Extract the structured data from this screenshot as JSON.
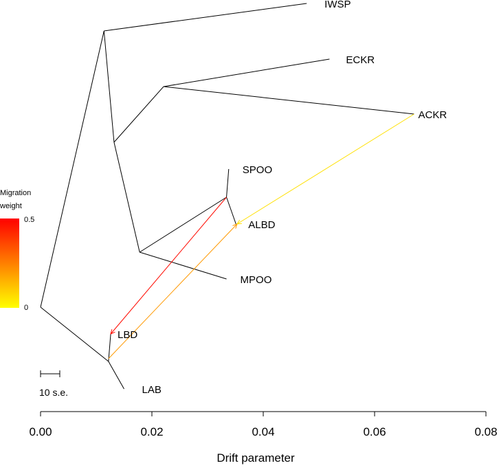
{
  "chart_data": {
    "type": "tree",
    "xlabel": "Drift parameter",
    "xlim": [
      0,
      0.08
    ],
    "x_ticks": [
      0,
      0.02,
      0.04,
      0.06,
      0.08
    ],
    "x_tick_labels": [
      "0.00",
      "0.02",
      "0.04",
      "0.06",
      "0.08"
    ],
    "nodes": [
      {
        "id": "root",
        "drift": 0.0
      },
      {
        "id": "n1",
        "drift": 0.0114
      },
      {
        "id": "n2",
        "drift": 0.0132
      },
      {
        "id": "n3",
        "drift": 0.0221
      },
      {
        "id": "n4",
        "drift": 0.0178
      },
      {
        "id": "n5",
        "drift": 0.0334
      },
      {
        "id": "n6",
        "drift": 0.0122
      },
      {
        "id": "IWSP",
        "drift": 0.0478,
        "label": "IWSP"
      },
      {
        "id": "ECKR",
        "drift": 0.0519,
        "label": "ECKR"
      },
      {
        "id": "ACKR",
        "drift": 0.0671,
        "label": "ACKR"
      },
      {
        "id": "SPOO",
        "drift": 0.0338,
        "label": "SPOO"
      },
      {
        "id": "ALBD",
        "drift": 0.0351,
        "label": "ALBD"
      },
      {
        "id": "MPOO",
        "drift": 0.0334,
        "label": "MPOO"
      },
      {
        "id": "LBD",
        "drift": 0.0126,
        "label": "LBD"
      },
      {
        "id": "LAB",
        "drift": 0.015,
        "label": "LAB"
      }
    ],
    "edges": [
      [
        "root",
        "n1"
      ],
      [
        "n1",
        "IWSP"
      ],
      [
        "n1",
        "n2"
      ],
      [
        "n2",
        "n3"
      ],
      [
        "n3",
        "ECKR"
      ],
      [
        "n3",
        "ACKR"
      ],
      [
        "n2",
        "n4"
      ],
      [
        "n4",
        "n5"
      ],
      [
        "n5",
        "SPOO"
      ],
      [
        "n5",
        "ALBD"
      ],
      [
        "n4",
        "MPOO"
      ],
      [
        "root",
        "n6"
      ],
      [
        "n6",
        "LBD"
      ],
      [
        "n6",
        "LAB"
      ]
    ],
    "migration_edges": [
      {
        "from": "n5",
        "to": "LBD",
        "weight": 0.48
      },
      {
        "from": "n6",
        "to": "ALBD",
        "weight": 0.2
      },
      {
        "from": "ACKR",
        "to": "ALBD",
        "weight": 0.06
      }
    ],
    "legend": {
      "title_line1": "Migration",
      "title_line2": "weight",
      "max_label": "0.5",
      "min_label": "0",
      "colors": [
        "#ff0000",
        "#ffff00"
      ]
    },
    "scale_bar_label": "10 s.e."
  }
}
